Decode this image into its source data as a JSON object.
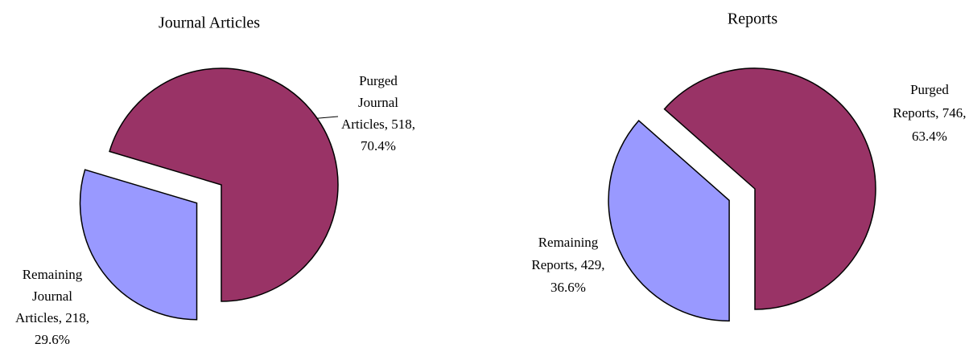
{
  "chart_data": [
    {
      "type": "pie",
      "title": "Journal Articles",
      "values": [
        518,
        218
      ],
      "labels": [
        [
          "Purged",
          "Journal",
          "Articles, 518,",
          "70.4%"
        ],
        [
          "Remaining",
          "Journal",
          "Articles, 218,",
          "29.6%"
        ]
      ],
      "colors": [
        "#993366",
        "#9999ff"
      ]
    },
    {
      "type": "pie",
      "title": "Reports",
      "values": [
        746,
        429
      ],
      "labels": [
        [
          "Purged",
          "Reports, 746,",
          "63.4%"
        ],
        [
          "Remaining",
          "Reports, 429,",
          "36.6%"
        ]
      ],
      "colors": [
        "#993366",
        "#9999ff"
      ]
    }
  ]
}
